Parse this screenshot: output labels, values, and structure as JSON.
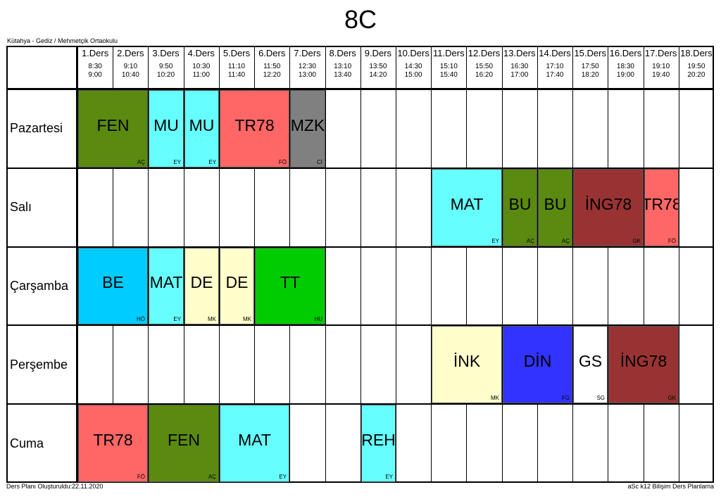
{
  "title": "8C",
  "school": "Kütahya - Gediz / Mehmetçik Ortaokulu",
  "footer": {
    "left": "Ders Planı Oluşturuldu:22.11.2020",
    "right": "aSc k12 Bilişim Ders Planlama"
  },
  "periods": [
    {
      "name": "1.Ders",
      "start": "8:30",
      "end": "9:00"
    },
    {
      "name": "2.Ders",
      "start": "9:10",
      "end": "10:40"
    },
    {
      "name": "3.Ders",
      "start": "9:50",
      "end": "10:20"
    },
    {
      "name": "4.Ders",
      "start": "10:30",
      "end": "11:00"
    },
    {
      "name": "5.Ders",
      "start": "11:10",
      "end": "11:40"
    },
    {
      "name": "6.Ders",
      "start": "11:50",
      "end": "12:20"
    },
    {
      "name": "7.Ders",
      "start": "12:30",
      "end": "13:00"
    },
    {
      "name": "8.Ders",
      "start": "13:10",
      "end": "13:40"
    },
    {
      "name": "9.Ders",
      "start": "13:50",
      "end": "14:20"
    },
    {
      "name": "10.Ders",
      "start": "14:30",
      "end": "15:00"
    },
    {
      "name": "11.Ders",
      "start": "15:10",
      "end": "15:40"
    },
    {
      "name": "12.Ders",
      "start": "15:50",
      "end": "16:20"
    },
    {
      "name": "13.Ders",
      "start": "16:30",
      "end": "17:00"
    },
    {
      "name": "14.Ders",
      "start": "17:10",
      "end": "17:40"
    },
    {
      "name": "15.Ders",
      "start": "17:50",
      "end": "18:20"
    },
    {
      "name": "16.Ders",
      "start": "18:30",
      "end": "19:00"
    },
    {
      "name": "17.Ders",
      "start": "19:10",
      "end": "19:40"
    },
    {
      "name": "18.Ders",
      "start": "19:50",
      "end": "20:20"
    }
  ],
  "days": [
    {
      "name": "Pazartesi",
      "lessons": [
        {
          "subject": "FEN",
          "teacher": "AÇ",
          "start": 1,
          "span": 2,
          "color": "#5a8a0f"
        },
        {
          "subject": "MU",
          "teacher": "EY",
          "start": 3,
          "span": 1,
          "color": "#66ffff"
        },
        {
          "subject": "MU",
          "teacher": "EY",
          "start": 4,
          "span": 1,
          "color": "#66ffff"
        },
        {
          "subject": "TR78",
          "teacher": "FÖ",
          "start": 5,
          "span": 2,
          "color": "#ff6666"
        },
        {
          "subject": "MZK",
          "teacher": "Cİ",
          "start": 7,
          "span": 1,
          "color": "#808080"
        }
      ]
    },
    {
      "name": "Salı",
      "lessons": [
        {
          "subject": "MAT",
          "teacher": "EY",
          "start": 11,
          "span": 2,
          "color": "#66ffff"
        },
        {
          "subject": "BU",
          "teacher": "AÇ",
          "start": 13,
          "span": 1,
          "color": "#5a8a0f"
        },
        {
          "subject": "BU",
          "teacher": "AÇ",
          "start": 14,
          "span": 1,
          "color": "#5a8a0f"
        },
        {
          "subject": "İNG78",
          "teacher": "GK",
          "start": 15,
          "span": 2,
          "color": "#993333"
        },
        {
          "subject": "TR78",
          "teacher": "FÖ",
          "start": 17,
          "span": 1,
          "color": "#ff6666"
        }
      ]
    },
    {
      "name": "Çarşamba",
      "lessons": [
        {
          "subject": "BE",
          "teacher": "HÖ",
          "start": 1,
          "span": 2,
          "color": "#00ccff"
        },
        {
          "subject": "MAT",
          "teacher": "EY",
          "start": 3,
          "span": 1,
          "color": "#66ffff"
        },
        {
          "subject": "DE",
          "teacher": "MK",
          "start": 4,
          "span": 1,
          "color": "#ffffcc"
        },
        {
          "subject": "DE",
          "teacher": "MK",
          "start": 5,
          "span": 1,
          "color": "#ffffcc"
        },
        {
          "subject": "TT",
          "teacher": "HU",
          "start": 6,
          "span": 2,
          "color": "#00cc00"
        }
      ]
    },
    {
      "name": "Perşembe",
      "lessons": [
        {
          "subject": "İNK",
          "teacher": "MK",
          "start": 11,
          "span": 2,
          "color": "#ffffcc"
        },
        {
          "subject": "DİN",
          "teacher": "FG",
          "start": 13,
          "span": 2,
          "color": "#3333ff"
        },
        {
          "subject": "GS",
          "teacher": "SG",
          "start": 15,
          "span": 1,
          "color": "#ffffff"
        },
        {
          "subject": "İNG78",
          "teacher": "GK",
          "start": 16,
          "span": 2,
          "color": "#993333"
        }
      ]
    },
    {
      "name": "Cuma",
      "lessons": [
        {
          "subject": "TR78",
          "teacher": "FÖ",
          "start": 1,
          "span": 2,
          "color": "#ff6666"
        },
        {
          "subject": "FEN",
          "teacher": "AÇ",
          "start": 3,
          "span": 2,
          "color": "#5a8a0f"
        },
        {
          "subject": "MAT",
          "teacher": "EY",
          "start": 5,
          "span": 2,
          "color": "#66ffff"
        },
        {
          "subject": "REH",
          "teacher": "EY",
          "start": 9,
          "span": 1,
          "color": "#66ffff"
        }
      ]
    }
  ]
}
